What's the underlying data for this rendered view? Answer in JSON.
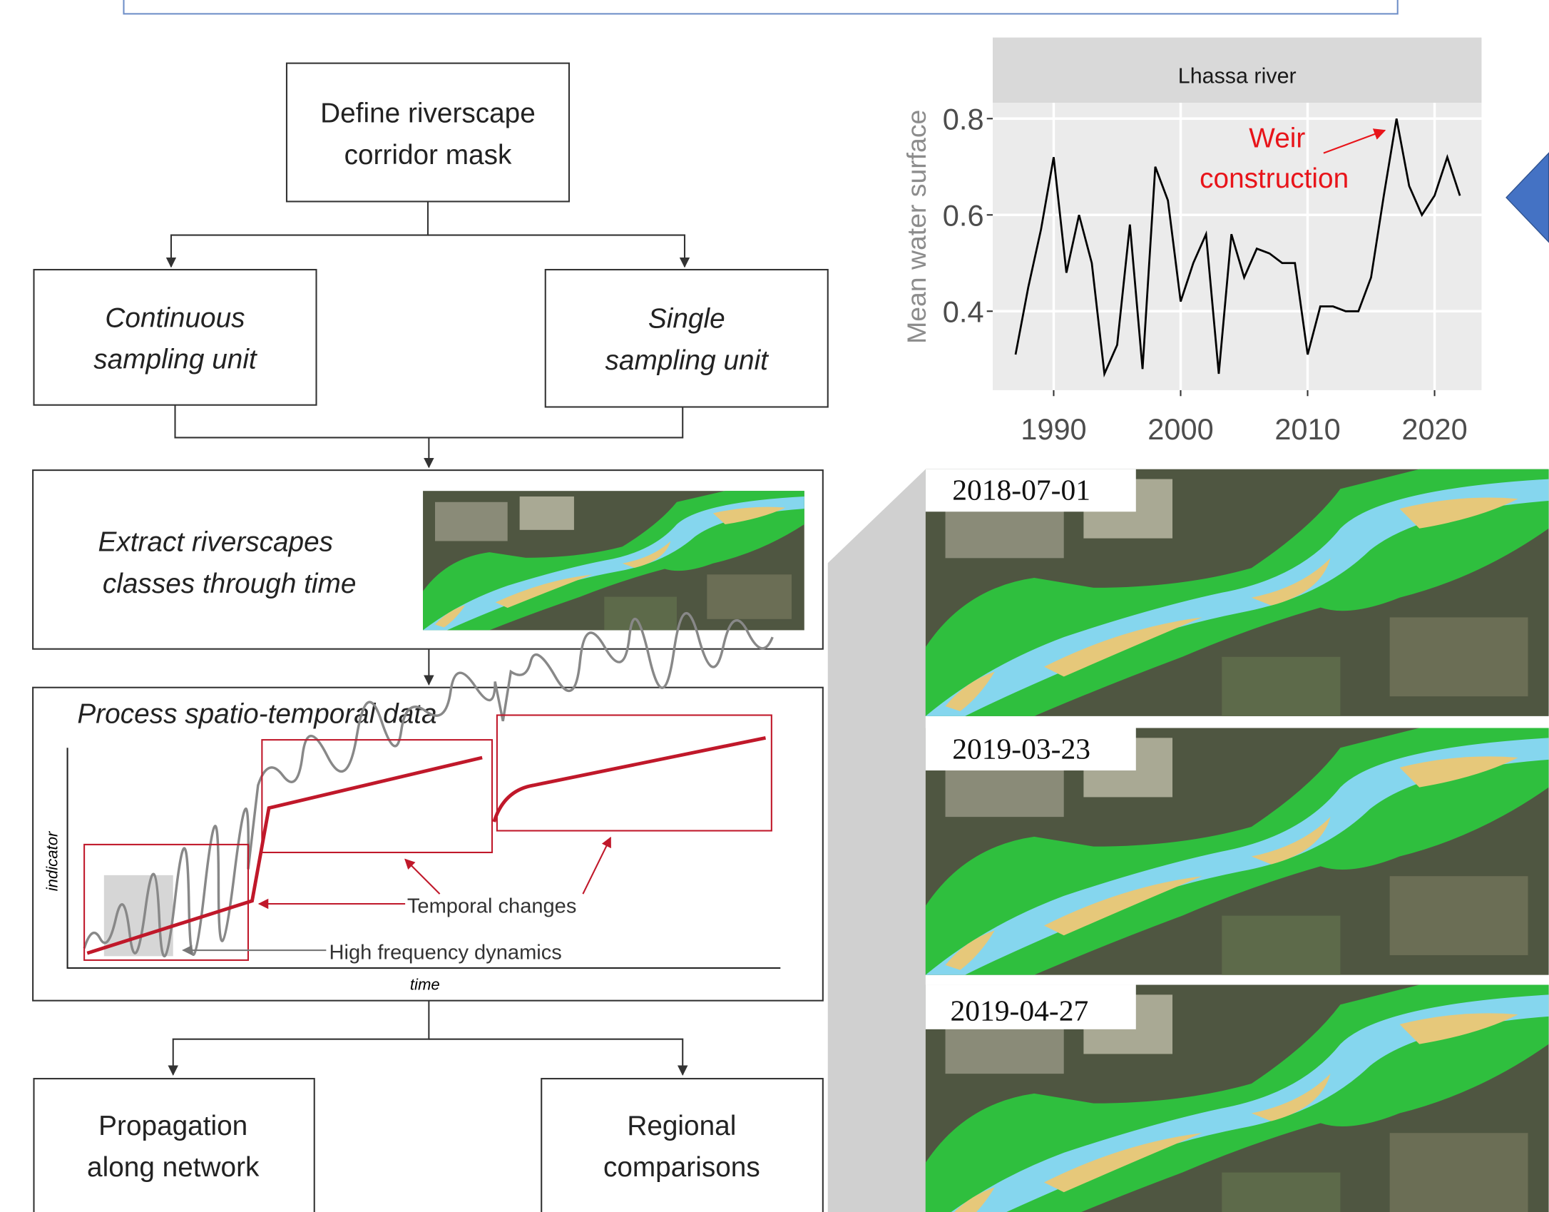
{
  "nodes": [
    {
      "label": [
        "Define riverscape",
        "corridor mask"
      ]
    },
    {
      "label": [
        "Continuous",
        "sampling unit"
      ]
    },
    {
      "label": [
        "Single",
        "sampling unit"
      ]
    },
    {
      "label": [
        "Extract riverscapes",
        "classes through time"
      ]
    },
    {
      "label": [
        "Propagation",
        "along network"
      ]
    },
    {
      "label": [
        "Regional",
        "comparisons"
      ]
    }
  ],
  "process": {
    "title": "Process spatio-temporal data",
    "y_label": "indicator",
    "x_label": "time",
    "annotations": [
      "Temporal changes",
      "High frequency dynamics"
    ]
  },
  "chart_data": {
    "type": "line",
    "title": "Lhassa river",
    "y_label": "Mean water surface",
    "annotation": [
      "Weir",
      "construction"
    ],
    "x": [
      1987,
      1988,
      1989,
      1990,
      1991,
      1992,
      1993,
      1994,
      1995,
      1996,
      1997,
      1998,
      1999,
      2000,
      2001,
      2002,
      2003,
      2004,
      2005,
      2006,
      2007,
      2008,
      2009,
      2010,
      2011,
      2012,
      2013,
      2014,
      2015,
      2016,
      2017,
      2018,
      2019,
      2020,
      2021,
      2022
    ],
    "values": [
      0.31,
      0.45,
      0.57,
      0.72,
      0.48,
      0.6,
      0.5,
      0.27,
      0.33,
      0.58,
      0.28,
      0.7,
      0.63,
      0.42,
      0.5,
      0.56,
      0.27,
      0.56,
      0.47,
      0.53,
      0.52,
      0.5,
      0.5,
      0.31,
      0.41,
      0.41,
      0.4,
      0.4,
      0.47,
      0.64,
      0.8,
      0.66,
      0.6,
      0.64,
      0.72,
      0.64
    ],
    "color": "#000000",
    "xlim": [
      1985.2,
      2023.7
    ],
    "ylim": [
      0.236,
      0.833
    ],
    "xticks": [
      1990,
      2000,
      2010,
      2020
    ],
    "yticks": [
      0.4,
      0.6,
      0.8
    ],
    "grid": true
  },
  "images": [
    {
      "date": "2018-07-01"
    },
    {
      "date": "2019-03-23"
    },
    {
      "date": "2019-04-27"
    }
  ]
}
